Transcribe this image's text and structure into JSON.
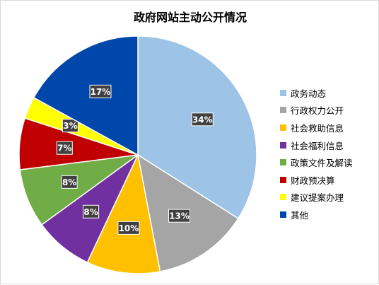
{
  "chart_data": {
    "type": "pie",
    "title": "政府网站主动公开情况",
    "categories": [
      "政务动态",
      "行政权力公开",
      "社会救助信息",
      "社会福利信息",
      "政策文件及解读",
      "财政预决算",
      "建议提案办理",
      "其他"
    ],
    "values": [
      34,
      13,
      10,
      8,
      8,
      7,
      3,
      17
    ],
    "labels": [
      "34%",
      "13%",
      "10%",
      "8%",
      "8%",
      "7%",
      "3%",
      "17%"
    ],
    "colors": [
      "#9dc3e6",
      "#a5a5a5",
      "#ffc000",
      "#7030a0",
      "#70ad47",
      "#c00000",
      "#ffff00",
      "#0047ab"
    ],
    "legend": "right"
  }
}
